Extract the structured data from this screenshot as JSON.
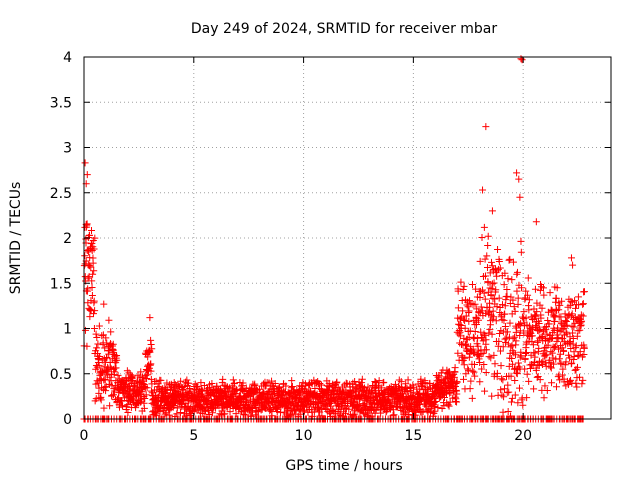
{
  "chart_data": {
    "type": "scatter",
    "title": "Day 249 of 2024, SRMTID for receiver mbar",
    "xlabel": "GPS time / hours",
    "ylabel": "SRMTID / TECUs",
    "xlim": [
      0,
      24
    ],
    "ylim": [
      0,
      4
    ],
    "xticks": [
      0,
      5,
      10,
      15,
      20
    ],
    "yticks": [
      0,
      0.5,
      1,
      1.5,
      2,
      2.5,
      3,
      3.5,
      4
    ],
    "ytick_labels": [
      "0",
      "0.5",
      "1",
      "1.5",
      "2",
      "2.5",
      "3",
      "3.5",
      "4"
    ],
    "grid": true,
    "marker": "+",
    "color": "#ff0000",
    "series": [
      {
        "name": "SRMTID",
        "segments": [
          {
            "t0": 0.0,
            "t1": 0.5,
            "base": 1.5,
            "spread": 1.3,
            "zero_frac": 0.05
          },
          {
            "t0": 0.5,
            "t1": 1.5,
            "base": 0.6,
            "spread": 0.7,
            "zero_frac": 0.05
          },
          {
            "t0": 1.5,
            "t1": 2.8,
            "base": 0.3,
            "spread": 0.3,
            "zero_frac": 0.05
          },
          {
            "t0": 2.8,
            "t1": 3.1,
            "base": 0.6,
            "spread": 0.5,
            "zero_frac": 0.05
          },
          {
            "t0": 3.1,
            "t1": 16.0,
            "base": 0.22,
            "spread": 0.28,
            "zero_frac": 0.08
          },
          {
            "t0": 16.0,
            "t1": 17.0,
            "base": 0.35,
            "spread": 0.35,
            "zero_frac": 0.05
          },
          {
            "t0": 17.0,
            "t1": 18.0,
            "base": 0.9,
            "spread": 0.9,
            "zero_frac": 0.08
          },
          {
            "t0": 18.0,
            "t1": 19.0,
            "base": 1.1,
            "spread": 1.3,
            "zero_frac": 0.1
          },
          {
            "t0": 19.0,
            "t1": 20.0,
            "base": 0.9,
            "spread": 1.4,
            "zero_frac": 0.12
          },
          {
            "t0": 20.0,
            "t1": 21.0,
            "base": 0.9,
            "spread": 0.9,
            "zero_frac": 0.1
          },
          {
            "t0": 21.0,
            "t1": 22.8,
            "base": 0.9,
            "spread": 0.8,
            "zero_frac": 0.1
          }
        ],
        "outliers": [
          {
            "x": 0.05,
            "y": 2.83
          },
          {
            "x": 0.1,
            "y": 2.6
          },
          {
            "x": 0.15,
            "y": 2.7
          },
          {
            "x": 0.1,
            "y": 2.15
          },
          {
            "x": 0.25,
            "y": 2.03
          },
          {
            "x": 0.3,
            "y": 1.9
          },
          {
            "x": 0.2,
            "y": 1.7
          },
          {
            "x": 0.9,
            "y": 1.27
          },
          {
            "x": 3.0,
            "y": 1.12
          },
          {
            "x": 18.15,
            "y": 2.53
          },
          {
            "x": 18.3,
            "y": 3.23
          },
          {
            "x": 18.6,
            "y": 2.3
          },
          {
            "x": 19.7,
            "y": 2.72
          },
          {
            "x": 19.8,
            "y": 2.65
          },
          {
            "x": 19.85,
            "y": 2.45
          },
          {
            "x": 19.9,
            "y": 3.98
          },
          {
            "x": 19.95,
            "y": 3.97
          },
          {
            "x": 20.6,
            "y": 2.18
          },
          {
            "x": 22.2,
            "y": 1.78
          },
          {
            "x": 22.25,
            "y": 1.7
          }
        ]
      }
    ]
  }
}
